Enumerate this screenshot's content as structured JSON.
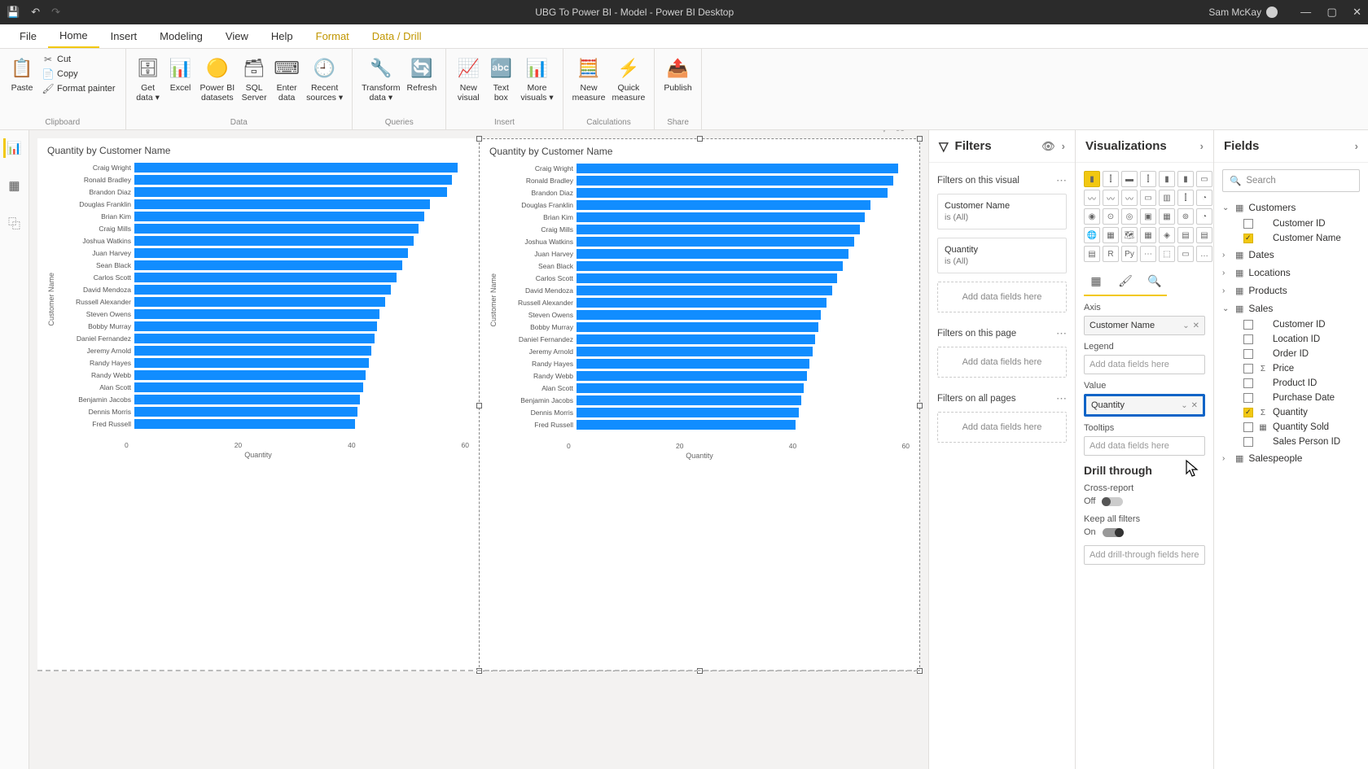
{
  "titlebar": {
    "title": "UBG To Power BI - Model - Power BI Desktop",
    "user": "Sam McKay"
  },
  "menu_tabs": [
    "File",
    "Home",
    "Insert",
    "Modeling",
    "View",
    "Help",
    "Format",
    "Data / Drill"
  ],
  "menu_active_index": 1,
  "menu_colored_indices": [
    6,
    7
  ],
  "ribbon": {
    "groups": [
      {
        "label": "Clipboard",
        "buttons": [
          {
            "type": "large",
            "icon": "📋",
            "text": "Paste"
          },
          {
            "type": "stack",
            "rows": [
              {
                "icon": "✂",
                "text": "Cut"
              },
              {
                "icon": "📄",
                "text": "Copy"
              },
              {
                "icon": "🖌",
                "text": "Format painter"
              }
            ]
          }
        ]
      },
      {
        "label": "Data",
        "buttons": [
          {
            "type": "large",
            "icon": "🗄",
            "text": "Get\ndata ▾"
          },
          {
            "type": "large",
            "icon": "📊",
            "text": "Excel"
          },
          {
            "type": "large",
            "icon": "🟡",
            "text": "Power BI\ndatasets"
          },
          {
            "type": "large",
            "icon": "🗃",
            "text": "SQL\nServer"
          },
          {
            "type": "large",
            "icon": "⌨",
            "text": "Enter\ndata"
          },
          {
            "type": "large",
            "icon": "🕘",
            "text": "Recent\nsources ▾"
          }
        ]
      },
      {
        "label": "Queries",
        "buttons": [
          {
            "type": "large",
            "icon": "🔧",
            "text": "Transform\ndata ▾"
          },
          {
            "type": "large",
            "icon": "🔄",
            "text": "Refresh"
          }
        ]
      },
      {
        "label": "Insert",
        "buttons": [
          {
            "type": "large",
            "icon": "📈",
            "text": "New\nvisual"
          },
          {
            "type": "large",
            "icon": "🔤",
            "text": "Text\nbox"
          },
          {
            "type": "large",
            "icon": "📊",
            "text": "More\nvisuals ▾"
          }
        ]
      },
      {
        "label": "Calculations",
        "buttons": [
          {
            "type": "large",
            "icon": "🧮",
            "text": "New\nmeasure"
          },
          {
            "type": "large",
            "icon": "⚡",
            "text": "Quick\nmeasure"
          }
        ]
      },
      {
        "label": "Share",
        "buttons": [
          {
            "type": "large",
            "icon": "📤",
            "text": "Publish"
          }
        ]
      }
    ]
  },
  "chart": {
    "title": "Quantity by Customer Name",
    "y_label": "Customer Name",
    "x_label": "Quantity",
    "x_ticks": [
      "0",
      "20",
      "40",
      "60"
    ],
    "x_max": 60,
    "bar_color": "#118dff",
    "data": [
      {
        "name": "Craig Wright",
        "value": 58
      },
      {
        "name": "Ronald Bradley",
        "value": 57
      },
      {
        "name": "Brandon Diaz",
        "value": 56
      },
      {
        "name": "Douglas Franklin",
        "value": 53
      },
      {
        "name": "Brian Kim",
        "value": 52
      },
      {
        "name": "Craig Mills",
        "value": 51
      },
      {
        "name": "Joshua Watkins",
        "value": 50
      },
      {
        "name": "Juan Harvey",
        "value": 49
      },
      {
        "name": "Sean Black",
        "value": 48
      },
      {
        "name": "Carlos Scott",
        "value": 47
      },
      {
        "name": "David Mendoza",
        "value": 46
      },
      {
        "name": "Russell Alexander",
        "value": 45
      },
      {
        "name": "Steven Owens",
        "value": 44
      },
      {
        "name": "Bobby Murray",
        "value": 43.5
      },
      {
        "name": "Daniel Fernandez",
        "value": 43
      },
      {
        "name": "Jeremy Arnold",
        "value": 42.5
      },
      {
        "name": "Randy Hayes",
        "value": 42
      },
      {
        "name": "Randy Webb",
        "value": 41.5
      },
      {
        "name": "Alan Scott",
        "value": 41
      },
      {
        "name": "Benjamin Jacobs",
        "value": 40.5
      },
      {
        "name": "Dennis Morris",
        "value": 40
      },
      {
        "name": "Fred Russell",
        "value": 39.5
      }
    ]
  },
  "filters_pane": {
    "title": "Filters",
    "sections": [
      {
        "title": "Filters on this visual",
        "cards": [
          {
            "name": "Customer Name",
            "value": "is (All)"
          },
          {
            "name": "Quantity",
            "value": "is (All)"
          }
        ],
        "drop": "Add data fields here"
      },
      {
        "title": "Filters on this page",
        "cards": [],
        "drop": "Add data fields here"
      },
      {
        "title": "Filters on all pages",
        "cards": [],
        "drop": "Add data fields here"
      }
    ]
  },
  "viz_pane": {
    "title": "Visualizations",
    "wells": {
      "axis": {
        "label": "Axis",
        "field": "Customer Name"
      },
      "legend": {
        "label": "Legend",
        "placeholder": "Add data fields here"
      },
      "value": {
        "label": "Value",
        "field": "Quantity"
      },
      "tooltips": {
        "label": "Tooltips",
        "placeholder": "Add data fields here"
      }
    },
    "drill": {
      "title": "Drill through",
      "cross_report": {
        "label": "Cross-report",
        "state": "Off"
      },
      "keep_filters": {
        "label": "Keep all filters",
        "state": "On"
      },
      "drop": "Add drill-through fields here"
    }
  },
  "fields_pane": {
    "title": "Fields",
    "search_placeholder": "Search",
    "tables": [
      {
        "name": "Customers",
        "expanded": true,
        "fields": [
          {
            "name": "Customer ID",
            "checked": false,
            "icon": ""
          },
          {
            "name": "Customer Name",
            "checked": true,
            "icon": ""
          }
        ]
      },
      {
        "name": "Dates",
        "expanded": false,
        "fields": []
      },
      {
        "name": "Locations",
        "expanded": false,
        "fields": []
      },
      {
        "name": "Products",
        "expanded": false,
        "fields": []
      },
      {
        "name": "Sales",
        "expanded": true,
        "fields": [
          {
            "name": "Customer ID",
            "checked": false,
            "icon": ""
          },
          {
            "name": "Location ID",
            "checked": false,
            "icon": ""
          },
          {
            "name": "Order ID",
            "checked": false,
            "icon": ""
          },
          {
            "name": "Price",
            "checked": false,
            "icon": "Σ"
          },
          {
            "name": "Product ID",
            "checked": false,
            "icon": ""
          },
          {
            "name": "Purchase Date",
            "checked": false,
            "icon": ""
          },
          {
            "name": "Quantity",
            "checked": true,
            "icon": "Σ"
          },
          {
            "name": "Quantity Sold",
            "checked": false,
            "icon": "▦"
          },
          {
            "name": "Sales Person ID",
            "checked": false,
            "icon": ""
          }
        ]
      },
      {
        "name": "Salespeople",
        "expanded": false,
        "fields": []
      }
    ]
  },
  "colors": {
    "accent": "#f2c811",
    "bar": "#118dff",
    "highlight_border": "#1064c7"
  }
}
